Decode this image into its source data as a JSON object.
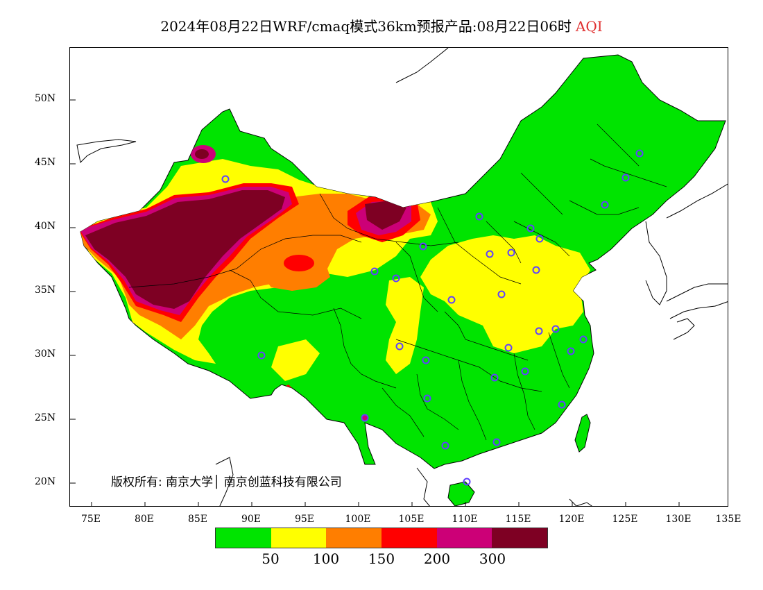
{
  "title": {
    "main": "2024年08月22日WRF/cmaq模式36km预报产品:08月22日06时",
    "variable": "AQI"
  },
  "copyright": "版权所有: 南京大学│ 南京创蓝科技有限公司",
  "axes": {
    "y_ticks": [
      "50N",
      "45N",
      "40N",
      "35N",
      "30N",
      "25N",
      "20N"
    ],
    "x_ticks": [
      "75E",
      "80E",
      "85E",
      "90E",
      "95E",
      "100E",
      "105E",
      "110E",
      "115E",
      "120E",
      "125E",
      "130E",
      "135E"
    ]
  },
  "legend": {
    "colors": [
      "#00e400",
      "#ffff00",
      "#ff7e00",
      "#ff0000",
      "#cc0077",
      "#7e0023"
    ],
    "labels": [
      "50",
      "100",
      "150",
      "200",
      "300"
    ]
  },
  "colors": {
    "good": "#00e400",
    "moderate": "#ffff00",
    "usg": "#ff7e00",
    "unhealthy": "#ff0000",
    "very_unhealthy": "#cc0077",
    "hazardous": "#7e0023",
    "station_marker": "#6040ff"
  }
}
